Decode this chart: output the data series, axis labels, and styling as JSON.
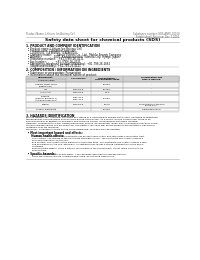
{
  "title": "Safety data sheet for chemical products (SDS)",
  "header_left": "Product Name: Lithium Ion Battery Cell",
  "header_right_line1": "Substance number: SDS-ANFE-00010",
  "header_right_line2": "Established / Revision: Dec.7.2016",
  "section1_title": "1. PRODUCT AND COMPANY IDENTIFICATION",
  "section1_items": [
    "  • Product name: Lithium Ion Battery Cell",
    "  • Product code: Cylindrical-type cell",
    "     (14180001, (14186002, (14186004)",
    "  • Company name:      Sanyo Electric Co., Ltd., Mobile Energy Company",
    "  • Address:              2001, Kamikosakacho, Sumoto-City, Hyogo, Japan",
    "  • Telephone number:   +81-(799)-26-4111",
    "  • Fax number:          +81-(799)-26-4121",
    "  • Emergency telephone number (Weekday): +81-799-26-2662",
    "     (Night and holiday): +81-799-26-4121"
  ],
  "section2_title": "2. COMPOSITION / INFORMATION ON INGREDIENTS",
  "section2_subtitle": "  • Substance or preparation: Preparation",
  "section2_sub2": "  • Information about the chemical nature of product:",
  "table_col0_top": "Component",
  "table_col0_bot": "Chemical name",
  "table_headers": [
    "CAS number",
    "Concentration /\nConcentration range",
    "Classification and\nhazard labeling"
  ],
  "table_rows": [
    [
      "Lithium cobalt oxide\n(LiMn₂Co₂O₄)",
      "-",
      "35-60%",
      "-"
    ],
    [
      "Iron",
      "7439-89-6",
      "15-25%",
      "-"
    ],
    [
      "Aluminium",
      "7429-90-5",
      "2-5%",
      "-"
    ],
    [
      "Graphite\n(Flake or graphite-1)\n(Artificial graphite-1)",
      "7782-42-5\n7762-42-5",
      "10-25%",
      ""
    ],
    [
      "Copper",
      "7440-50-8",
      "5-15%",
      "Sensitization of the skin\ngroup No.2"
    ],
    [
      "Organic electrolyte",
      "-",
      "10-20%",
      "Flammable liquid"
    ]
  ],
  "section3_title": "3. HAZARDS IDENTIFICATION",
  "section3_paras": [
    "For the battery cell, chemical materials are stored in a hermetically sealed metal case, designed to withstand",
    "temperatures and pressures encountered during normal use. As a result, during normal use, there is no",
    "physical danger of ignition or explosion and there no danger of hazardous materials leakage.",
    "However, if exposed to a fire, added mechanical shocks, decomposed, when electro-chemical reactions occur,",
    "the gas release valves can be operated. The battery cell case will be breached of fire-partitions, hazardous",
    "materials may be released.",
    "Moreover, if heated strongly by the surrounding fire, soot gas may be emitted."
  ],
  "section3_bullet1": "  • Most important hazard and effects:",
  "section3_human": "      Human health effects:",
  "section3_sub": [
    "        Inhalation: The release of the electrolyte has an anesthesia action and stimulates a respiratory tract.",
    "        Skin contact: The release of the electrolyte stimulates a skin. The electrolyte skin contact causes a",
    "        sore and stimulation on the skin.",
    "        Eye contact: The release of the electrolyte stimulates eyes. The electrolyte eye contact causes a sore",
    "        and stimulation on the eye. Especially, a substance that causes a strong inflammation of the eye is",
    "        contained.",
    "        Environmental effects: Since a battery cell remains in the environment, do not throw out it into the",
    "        environment."
  ],
  "section3_bullet2": "  • Specific hazards:",
  "section3_specific": [
    "        If the electrolyte contacts with water, it will generate detrimental hydrogen fluoride.",
    "        Since the used electrolyte is inflammable liquid, do not bring close to fire."
  ],
  "bg_color": "#ffffff",
  "text_color": "#000000",
  "line_color": "#000000",
  "table_border_color": "#999999",
  "table_header_bg": "#d0d0d0",
  "header_text_color": "#666666"
}
